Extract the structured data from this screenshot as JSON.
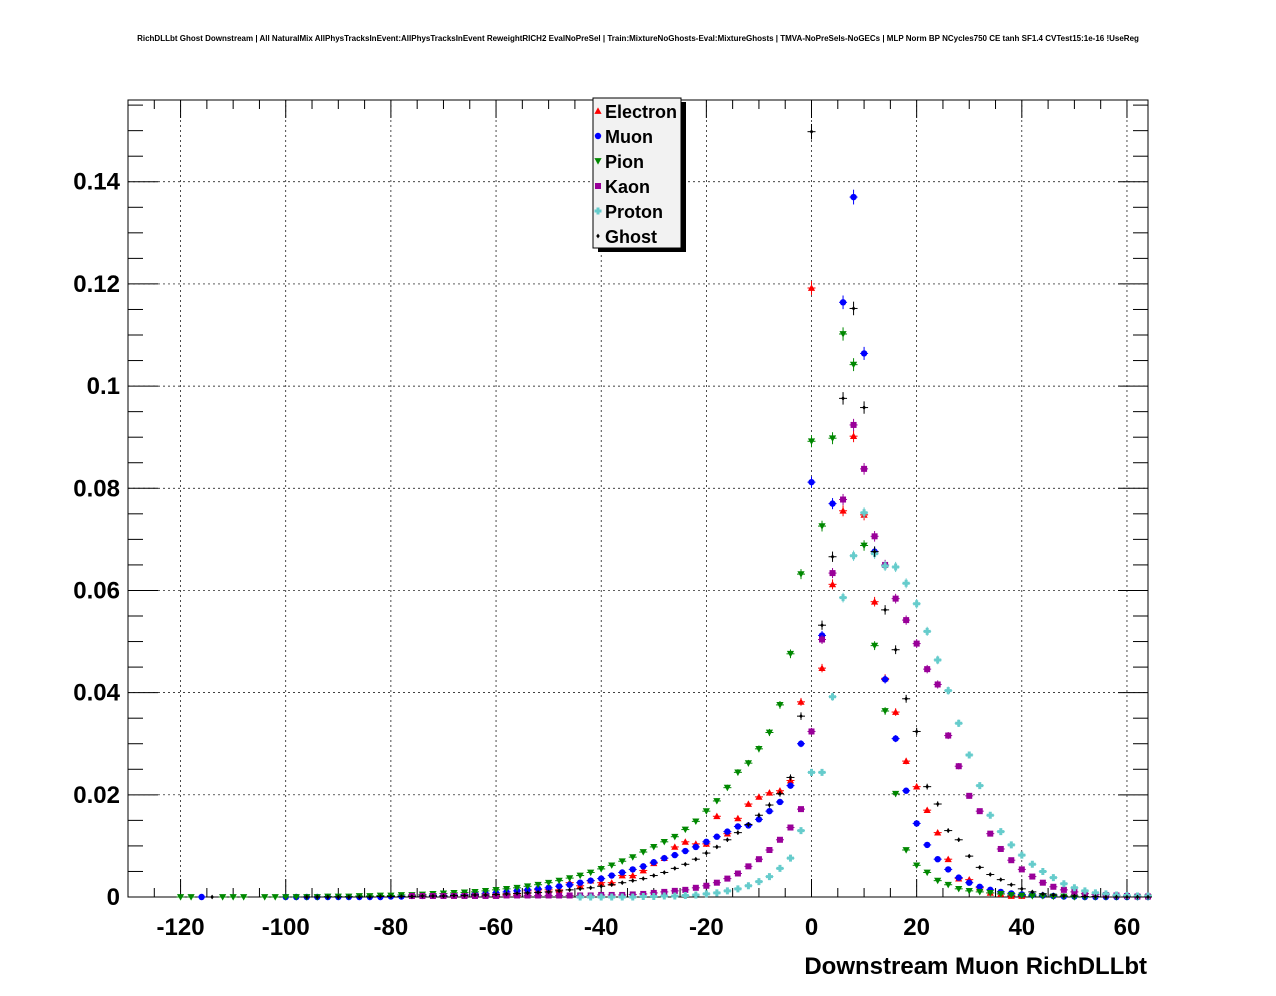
{
  "chart_data": {
    "type": "scatter",
    "title": "RichDLLbt Ghost Downstream | All NaturalMix AllPhysTracksInEvent:AllPhysTracksInEvent ReweightRICH2 EvalNoPreSel | Train:MixtureNoGhosts-Eval:MixtureGhosts | TMVA-NoPreSels-NoGECs | MLP Norm BP NCycles750 CE tanh SF1.4 CVTest15:1e-16 !UseReg",
    "xlabel": "Downstream Muon RichDLLbt",
    "ylabel": "",
    "xlim": [
      -130,
      64
    ],
    "ylim": [
      0,
      0.156
    ],
    "grid": true,
    "legend_position": "top-center",
    "x_ticks": [
      "-120",
      "-100",
      "-80",
      "-60",
      "-40",
      "-20",
      "0",
      "20",
      "40",
      "60"
    ],
    "y_ticks": [
      "0",
      "0.02",
      "0.04",
      "0.06",
      "0.08",
      "0.1",
      "0.12",
      "0.14"
    ],
    "x_tick_values": [
      -120,
      -100,
      -80,
      -60,
      -40,
      -20,
      0,
      20,
      40,
      60
    ],
    "y_tick_values": [
      0,
      0.02,
      0.04,
      0.06,
      0.08,
      0.1,
      0.12,
      0.14
    ],
    "series": [
      {
        "name": "Electron",
        "marker": "triangle-up",
        "color": "#ff0000",
        "x": [
          -60,
          -58,
          -56,
          -54,
          -52,
          -50,
          -48,
          -46,
          -44,
          -42,
          -40,
          -38,
          -36,
          -34,
          -32,
          -30,
          -28,
          -26,
          -24,
          -22,
          -20,
          -18,
          -16,
          -14,
          -12,
          -10,
          -8,
          -6,
          -4,
          -2,
          0,
          2,
          4,
          6,
          8,
          10,
          12,
          14,
          16,
          18,
          20,
          22,
          24,
          26,
          28,
          30,
          32,
          34,
          36,
          38,
          40
        ],
        "y": [
          0.0003,
          0.0005,
          0.0006,
          0.0012,
          0.0014,
          0.0014,
          0.0014,
          0.0028,
          0.0022,
          0.0032,
          0.0028,
          0.0028,
          0.0042,
          0.0042,
          0.0052,
          0.0066,
          0.0076,
          0.0098,
          0.0108,
          0.0104,
          0.0104,
          0.0158,
          0.0124,
          0.0154,
          0.0182,
          0.0196,
          0.0204,
          0.0208,
          0.0228,
          0.0382,
          0.1192,
          0.0448,
          0.0612,
          0.0756,
          0.0902,
          0.0748,
          0.0578,
          0.0428,
          0.0362,
          0.0266,
          0.0216,
          0.017,
          0.0126,
          0.0074,
          0.0036,
          0.0034,
          0.0018,
          0.0008,
          0.0006,
          0.0002,
          0.0002
        ]
      },
      {
        "name": "Muon",
        "marker": "circle",
        "color": "#0000ff",
        "x": [
          -116,
          -100,
          -98,
          -96,
          -94,
          -92,
          -90,
          -88,
          -86,
          -84,
          -82,
          -80,
          -78,
          -76,
          -74,
          -72,
          -70,
          -68,
          -66,
          -64,
          -62,
          -60,
          -58,
          -56,
          -54,
          -52,
          -50,
          -48,
          -46,
          -44,
          -42,
          -40,
          -38,
          -36,
          -34,
          -32,
          -30,
          -28,
          -26,
          -24,
          -22,
          -20,
          -18,
          -16,
          -14,
          -12,
          -10,
          -8,
          -6,
          -4,
          -2,
          0,
          2,
          4,
          6,
          8,
          10,
          12,
          14,
          16,
          18,
          20,
          22,
          24,
          26,
          28,
          30,
          32,
          34,
          36,
          38,
          40,
          42,
          44,
          46,
          48,
          50,
          52,
          54,
          56,
          58,
          60,
          62,
          64
        ],
        "y": [
          0,
          0,
          0,
          0,
          0,
          0,
          0,
          0,
          0,
          0,
          0,
          0.0001,
          0.0001,
          0.0002,
          0.0002,
          0.0003,
          0.0003,
          0.0004,
          0.0005,
          0.0006,
          0.0007,
          0.0008,
          0.001,
          0.0012,
          0.0014,
          0.0016,
          0.0018,
          0.0021,
          0.0024,
          0.0028,
          0.0032,
          0.0036,
          0.0042,
          0.0048,
          0.0054,
          0.006,
          0.0068,
          0.0076,
          0.0082,
          0.009,
          0.0098,
          0.0108,
          0.0118,
          0.0128,
          0.0138,
          0.014,
          0.0152,
          0.0168,
          0.0186,
          0.0218,
          0.03,
          0.0812,
          0.0512,
          0.077,
          0.1164,
          0.137,
          0.1064,
          0.0676,
          0.0426,
          0.031,
          0.0208,
          0.0144,
          0.0102,
          0.0074,
          0.0054,
          0.0038,
          0.0028,
          0.002,
          0.0014,
          0.001,
          0.0007,
          0.0005,
          0.0004,
          0.0003,
          0.0002,
          0.0001,
          0.0001,
          0,
          0,
          0,
          0,
          0,
          0,
          0
        ]
      },
      {
        "name": "Pion",
        "marker": "triangle-down",
        "color": "#008800",
        "x": [
          -120,
          -118,
          -112,
          -110,
          -108,
          -104,
          -102,
          -100,
          -98,
          -96,
          -94,
          -92,
          -90,
          -88,
          -86,
          -84,
          -82,
          -80,
          -78,
          -76,
          -74,
          -72,
          -70,
          -68,
          -66,
          -64,
          -62,
          -60,
          -58,
          -56,
          -54,
          -52,
          -50,
          -48,
          -46,
          -44,
          -42,
          -40,
          -38,
          -36,
          -34,
          -32,
          -30,
          -28,
          -26,
          -24,
          -22,
          -20,
          -18,
          -16,
          -14,
          -12,
          -10,
          -8,
          -6,
          -4,
          -2,
          0,
          2,
          4,
          6,
          8,
          10,
          12,
          14,
          16,
          18,
          20,
          22,
          24,
          26,
          28,
          30,
          32,
          34,
          36,
          38,
          40,
          42,
          44,
          46,
          48,
          50,
          52,
          54,
          56,
          58,
          60,
          62,
          64
        ],
        "y": [
          0,
          0,
          0,
          0,
          0,
          0,
          0,
          0,
          0,
          0,
          0,
          0.0001,
          0.0001,
          0.0001,
          0.0002,
          0.0002,
          0.0003,
          0.0003,
          0.0004,
          0.0004,
          0.0005,
          0.0006,
          0.0007,
          0.0008,
          0.0009,
          0.001,
          0.0012,
          0.0014,
          0.0016,
          0.0018,
          0.0021,
          0.0024,
          0.0028,
          0.0032,
          0.0037,
          0.0042,
          0.0048,
          0.0055,
          0.0062,
          0.007,
          0.0078,
          0.0088,
          0.0098,
          0.0108,
          0.0118,
          0.0132,
          0.0148,
          0.0168,
          0.0188,
          0.0214,
          0.0244,
          0.0262,
          0.029,
          0.0322,
          0.0376,
          0.0476,
          0.0632,
          0.0892,
          0.0726,
          0.0898,
          0.1102,
          0.1042,
          0.0688,
          0.0492,
          0.0364,
          0.0202,
          0.0092,
          0.0062,
          0.0048,
          0.0032,
          0.0024,
          0.0016,
          0.0012,
          0.001,
          0.0008,
          0.0006,
          0.0004,
          0.0003,
          0.0002,
          0.0002,
          0.0001,
          0.0001,
          0,
          0,
          0,
          0,
          0,
          0,
          0,
          0
        ]
      },
      {
        "name": "Kaon",
        "marker": "square",
        "color": "#990099",
        "x": [
          -76,
          -74,
          -72,
          -70,
          -68,
          -66,
          -64,
          -62,
          -60,
          -58,
          -56,
          -54,
          -52,
          -50,
          -48,
          -46,
          -44,
          -42,
          -40,
          -38,
          -36,
          -34,
          -32,
          -30,
          -28,
          -26,
          -24,
          -22,
          -20,
          -18,
          -16,
          -14,
          -12,
          -10,
          -8,
          -6,
          -4,
          -2,
          0,
          2,
          4,
          6,
          8,
          10,
          12,
          14,
          16,
          18,
          20,
          22,
          24,
          26,
          28,
          30,
          32,
          34,
          36,
          38,
          40,
          42,
          44,
          46,
          48,
          50,
          52,
          54,
          56,
          58,
          60,
          62,
          64
        ],
        "y": [
          0.0002,
          0.0002,
          0.0002,
          0.0002,
          0.0002,
          0.0002,
          0.0002,
          0.0002,
          0.0002,
          0.0003,
          0.0003,
          0.0003,
          0.0003,
          0.0003,
          0.0003,
          0.0003,
          0.0003,
          0.0003,
          0.0004,
          0.0004,
          0.0004,
          0.0005,
          0.0006,
          0.0008,
          0.001,
          0.0012,
          0.0014,
          0.0018,
          0.0022,
          0.0028,
          0.0036,
          0.0046,
          0.006,
          0.0074,
          0.0092,
          0.0112,
          0.0136,
          0.0172,
          0.0324,
          0.0504,
          0.0634,
          0.0778,
          0.0924,
          0.0838,
          0.0706,
          0.065,
          0.0584,
          0.0542,
          0.0496,
          0.0446,
          0.0416,
          0.0316,
          0.0256,
          0.0198,
          0.0168,
          0.0124,
          0.0094,
          0.0072,
          0.0054,
          0.004,
          0.0028,
          0.002,
          0.0014,
          0.001,
          0.0007,
          0.0005,
          0.0004,
          0.0003,
          0.0002,
          0.0001,
          0.0001
        ]
      },
      {
        "name": "Proton",
        "marker": "cross",
        "color": "#66cccc",
        "x": [
          -44,
          -42,
          -40,
          -38,
          -36,
          -34,
          -32,
          -30,
          -28,
          -26,
          -24,
          -22,
          -20,
          -18,
          -16,
          -14,
          -12,
          -10,
          -8,
          -6,
          -4,
          -2,
          0,
          2,
          4,
          6,
          8,
          10,
          12,
          14,
          16,
          18,
          20,
          22,
          24,
          26,
          28,
          30,
          32,
          34,
          36,
          38,
          40,
          42,
          44,
          46,
          48,
          50,
          52,
          54,
          56,
          58,
          60,
          62,
          64
        ],
        "y": [
          0,
          0,
          0,
          0,
          0,
          0,
          0.0001,
          0.0001,
          0.0002,
          0.0002,
          0.0003,
          0.0004,
          0.0006,
          0.0008,
          0.0012,
          0.0016,
          0.0022,
          0.003,
          0.004,
          0.0056,
          0.0076,
          0.013,
          0.0244,
          0.0244,
          0.0392,
          0.0586,
          0.0668,
          0.0752,
          0.0672,
          0.0648,
          0.0646,
          0.0614,
          0.0574,
          0.052,
          0.0464,
          0.0404,
          0.034,
          0.0278,
          0.0218,
          0.016,
          0.0128,
          0.0102,
          0.0082,
          0.0064,
          0.005,
          0.0038,
          0.0026,
          0.0018,
          0.0012,
          0.0008,
          0.0006,
          0.0004,
          0.0003,
          0.0002,
          0.0002
        ]
      },
      {
        "name": "Ghost",
        "marker": "small-diamond",
        "color": "#000000",
        "x": [
          -114,
          -96,
          -94,
          -92,
          -90,
          -88,
          -86,
          -84,
          -82,
          -80,
          -78,
          -76,
          -74,
          -72,
          -70,
          -68,
          -66,
          -64,
          -62,
          -60,
          -58,
          -56,
          -54,
          -52,
          -50,
          -48,
          -46,
          -44,
          -42,
          -40,
          -38,
          -36,
          -34,
          -32,
          -30,
          -28,
          -26,
          -24,
          -22,
          -20,
          -18,
          -16,
          -14,
          -12,
          -10,
          -8,
          -6,
          -4,
          -2,
          0,
          2,
          4,
          6,
          8,
          10,
          12,
          14,
          16,
          18,
          20,
          22,
          24,
          26,
          28,
          30,
          32,
          34,
          36,
          38,
          40,
          42,
          44,
          46,
          48,
          50,
          52,
          54,
          56,
          58,
          60,
          62,
          64
        ],
        "y": [
          0,
          0,
          0,
          0,
          0,
          0,
          0,
          0,
          0.0001,
          0.0001,
          0.0001,
          0.0001,
          0.0002,
          0.0002,
          0.0002,
          0.0003,
          0.0003,
          0.0004,
          0.0004,
          0.0005,
          0.0006,
          0.0007,
          0.0008,
          0.0009,
          0.001,
          0.0012,
          0.0014,
          0.0016,
          0.0018,
          0.0021,
          0.0024,
          0.0028,
          0.0032,
          0.0036,
          0.0042,
          0.0048,
          0.0056,
          0.0064,
          0.0074,
          0.0086,
          0.0098,
          0.0112,
          0.0126,
          0.0142,
          0.016,
          0.018,
          0.0202,
          0.0234,
          0.0354,
          0.1498,
          0.0532,
          0.0666,
          0.0976,
          0.1152,
          0.0958,
          0.0676,
          0.0562,
          0.0484,
          0.0388,
          0.0324,
          0.0216,
          0.0182,
          0.013,
          0.0112,
          0.008,
          0.0058,
          0.0044,
          0.0034,
          0.0024,
          0.0016,
          0.001,
          0.0006,
          0.0004,
          0.0002,
          0.0002,
          0.0001,
          0.0001,
          0,
          0,
          0,
          0,
          0
        ]
      }
    ]
  }
}
